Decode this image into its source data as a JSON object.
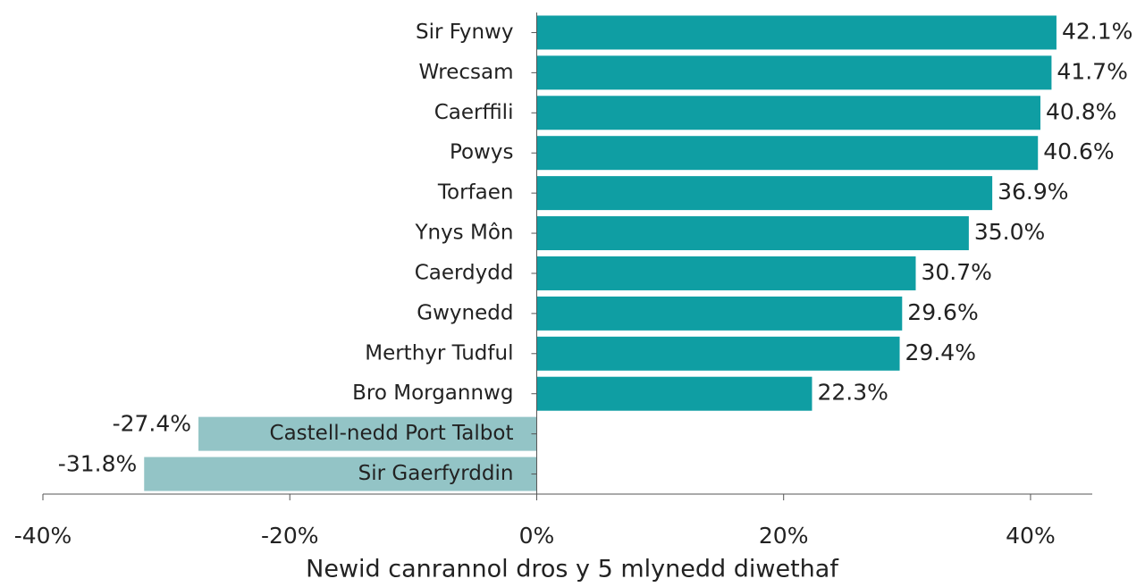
{
  "chart_data": {
    "type": "barh",
    "categories": [
      "Sir Fynwy",
      "Wrecsam",
      "Caerffili",
      "Powys",
      "Torfaen",
      "Ynys Môn",
      "Caerdydd",
      "Gwynedd",
      "Merthyr Tudful",
      "Bro Morgannwg",
      "Castell-nedd Port Talbot",
      "Sir Gaerfyrddin"
    ],
    "values": [
      42.1,
      41.7,
      40.8,
      40.6,
      36.9,
      35.0,
      30.7,
      29.6,
      29.4,
      22.3,
      -27.4,
      -31.8
    ],
    "value_labels": [
      "42.1%",
      "41.7%",
      "40.8%",
      "40.6%",
      "36.9%",
      "35.0%",
      "30.7%",
      "29.6%",
      "29.4%",
      "22.3%",
      "-27.4%",
      "-31.8%"
    ],
    "colors": [
      "#0f9ea3",
      "#0f9ea3",
      "#0f9ea3",
      "#0f9ea3",
      "#0f9ea3",
      "#0f9ea3",
      "#0f9ea3",
      "#0f9ea3",
      "#0f9ea3",
      "#0f9ea3",
      "#93c4c6",
      "#93c4c6"
    ],
    "xlabel": "Newid canrannol dros y 5 mlynedd diwethaf",
    "xlim": [
      -40,
      45
    ],
    "xticks": [
      {
        "value": -40,
        "label": "-40%"
      },
      {
        "value": -20,
        "label": "-20%"
      },
      {
        "value": 0,
        "label": "0%"
      },
      {
        "value": 20,
        "label": "20%"
      },
      {
        "value": 40,
        "label": "40%"
      }
    ]
  }
}
